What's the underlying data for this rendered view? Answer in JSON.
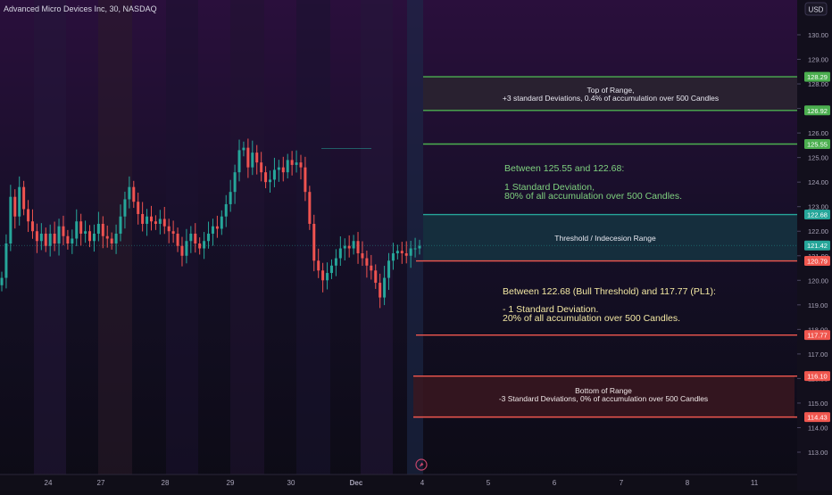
{
  "header": {
    "title": "Advanced Micro Devices Inc, 30, NASDAQ",
    "currency_button": "USD"
  },
  "colors": {
    "background": "#0f0d16",
    "candle_up": "#26a69a",
    "candle_down": "#ef5350",
    "green_line": "#4caf50",
    "red_line": "#f0574f",
    "teal_line": "#26a69a",
    "annotation_green": "#7fd17f",
    "annotation_yellow": "#f3e8a3",
    "annotation_white": "#e8e8f0"
  },
  "chart_data": {
    "type": "candlestick",
    "title": "Advanced Micro Devices Inc, 30, NASDAQ",
    "ylim": [
      112.2,
      131.1
    ],
    "y_ticks": [
      113,
      114,
      115,
      116,
      117,
      118,
      119,
      120,
      121,
      122,
      123,
      124,
      125,
      126,
      127,
      128,
      129,
      130
    ],
    "y_tick_labels": [
      "113.00",
      "114.00",
      "115.00",
      "116.00",
      "117.00",
      "118.00",
      "119.00",
      "120.00",
      "121.00",
      "122.00",
      "123.00",
      "124.00",
      "125.00",
      "126.00",
      "127.00",
      "128.00",
      "129.00",
      "130.00"
    ],
    "x_tick_labels": [
      "24",
      "27",
      "28",
      "29",
      "30",
      "Dec",
      "4",
      "5",
      "6",
      "7",
      "8",
      "11"
    ],
    "close_series": [
      120.1,
      121.5,
      123.4,
      122.6,
      123.8,
      122.9,
      122.4,
      122.0,
      121.6,
      121.9,
      121.4,
      121.9,
      121.5,
      122.2,
      121.8,
      121.5,
      121.7,
      122.4,
      121.9,
      122.0,
      121.6,
      121.9,
      122.3,
      121.8,
      121.7,
      121.5,
      121.9,
      122.6,
      123.3,
      123.8,
      123.2,
      122.7,
      122.3,
      122.6,
      122.4,
      122.3,
      122.5,
      122.2,
      122.0,
      121.9,
      121.4,
      121.0,
      121.6,
      121.9,
      121.5,
      121.3,
      121.6,
      121.9,
      122.2,
      122.1,
      122.6,
      123.1,
      123.6,
      124.4,
      125.3,
      125.4,
      124.6,
      125.2,
      124.8,
      124.4,
      124.0,
      124.1,
      124.5,
      124.6,
      124.4,
      124.9,
      124.7,
      124.8,
      124.6,
      123.6,
      122.3,
      120.8,
      120.4,
      120.0,
      120.3,
      120.6,
      120.9,
      121.3,
      121.4,
      121.3,
      121.6,
      121.1,
      120.9,
      120.6,
      120.4,
      119.9,
      119.3,
      120.1,
      120.8,
      121.1,
      121.2,
      121.1,
      121.0,
      121.3,
      121.3,
      121.4
    ],
    "price_lines": [
      {
        "price": "128.29",
        "value": 128.29,
        "kind": "green"
      },
      {
        "price": "126.92",
        "value": 126.92,
        "kind": "green"
      },
      {
        "price": "125.55",
        "value": 125.55,
        "kind": "green"
      },
      {
        "price": "122.68",
        "value": 122.68,
        "kind": "teal"
      },
      {
        "price": "121.42",
        "value": 121.42,
        "kind": "current"
      },
      {
        "price": "120.79",
        "value": 120.79,
        "kind": "red"
      },
      {
        "price": "117.77",
        "value": 117.77,
        "kind": "red"
      },
      {
        "price": "116.10",
        "value": 116.1,
        "kind": "red"
      },
      {
        "price": "114.43",
        "value": 114.43,
        "kind": "red"
      }
    ],
    "zones": [
      {
        "id": "top",
        "line1": "Top of Range,",
        "line2": "+3 standard Deviations, 0.4% of accumulation over 500 Candles"
      },
      {
        "id": "threshold",
        "line1": "Threshold / Indecesion Range"
      },
      {
        "id": "bottom",
        "line1": "Bottom of Range",
        "line2": "-3 Standard Deviations, 0% of accumulation over 500 Candles"
      }
    ],
    "annotations": {
      "green": [
        "Between 125.55 and 122.68:",
        "1 Standard Deviation,",
        "80% of all accumulation over 500 Candles."
      ],
      "yellow": [
        "Between 122.68 (Bull Threshold) and 117.77 (PL1):",
        "- 1 Standard Deviation.",
        "20% of all accumulation over 500 Candles."
      ]
    }
  }
}
